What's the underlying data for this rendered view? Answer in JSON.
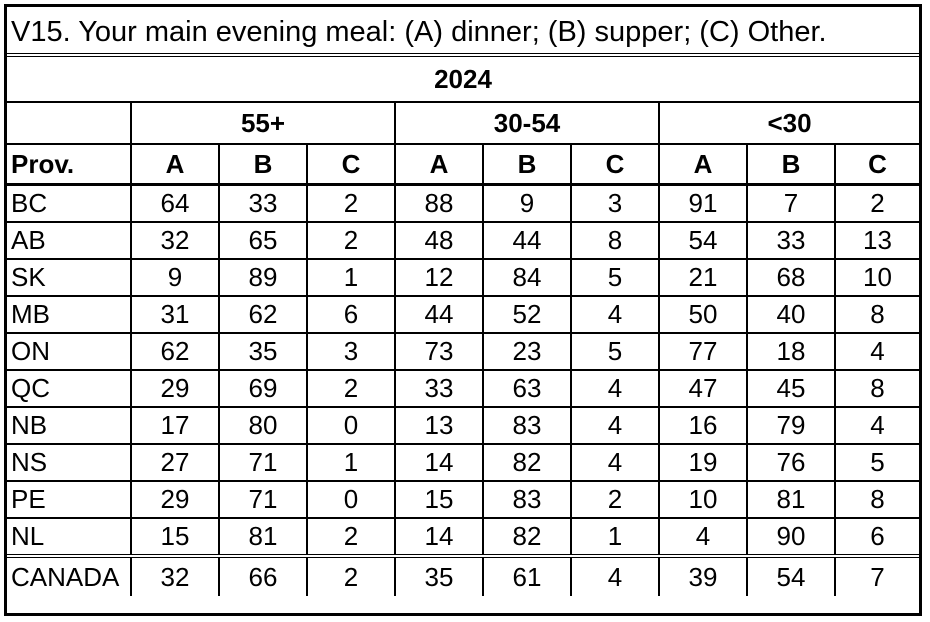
{
  "title": "V15. Your main evening meal: (A) dinner; (B) supper; (C) Other.",
  "year": "2024",
  "age_groups": [
    "55+",
    "30-54",
    "<30"
  ],
  "columns": {
    "province": "Prov.",
    "letters": [
      "A",
      "B",
      "C",
      "A",
      "B",
      "C",
      "A",
      "B",
      "C"
    ]
  },
  "rows": [
    {
      "prov": "BC",
      "values": [
        "64",
        "33",
        "2",
        "88",
        "9",
        "3",
        "91",
        "7",
        "2"
      ]
    },
    {
      "prov": "AB",
      "values": [
        "32",
        "65",
        "2",
        "48",
        "44",
        "8",
        "54",
        "33",
        "13"
      ]
    },
    {
      "prov": "SK",
      "values": [
        "9",
        "89",
        "1",
        "12",
        "84",
        "5",
        "21",
        "68",
        "10"
      ]
    },
    {
      "prov": "MB",
      "values": [
        "31",
        "62",
        "6",
        "44",
        "52",
        "4",
        "50",
        "40",
        "8"
      ]
    },
    {
      "prov": "ON",
      "values": [
        "62",
        "35",
        "3",
        "73",
        "23",
        "5",
        "77",
        "18",
        "4"
      ]
    },
    {
      "prov": "QC",
      "values": [
        "29",
        "69",
        "2",
        "33",
        "63",
        "4",
        "47",
        "45",
        "8"
      ]
    },
    {
      "prov": "NB",
      "values": [
        "17",
        "80",
        "0",
        "13",
        "83",
        "4",
        "16",
        "79",
        "4"
      ]
    },
    {
      "prov": "NS",
      "values": [
        "27",
        "71",
        "1",
        "14",
        "82",
        "4",
        "19",
        "76",
        "5"
      ]
    },
    {
      "prov": "PE",
      "values": [
        "29",
        "71",
        "0",
        "15",
        "83",
        "2",
        "10",
        "81",
        "8"
      ]
    },
    {
      "prov": "NL",
      "values": [
        "15",
        "81",
        "2",
        "14",
        "82",
        "1",
        "4",
        "90",
        "6"
      ]
    }
  ],
  "total": {
    "prov": "CANADA",
    "values": [
      "32",
      "66",
      "2",
      "35",
      "61",
      "4",
      "39",
      "54",
      "7"
    ]
  }
}
